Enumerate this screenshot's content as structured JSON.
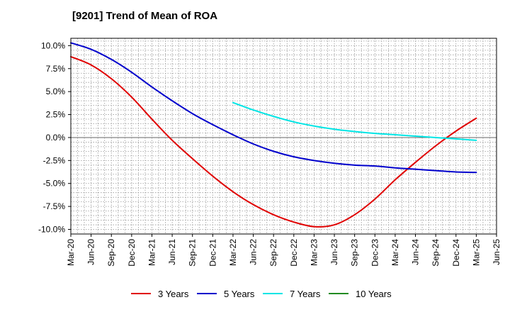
{
  "chart_data": {
    "type": "line",
    "title": "[9201]  Trend of Mean of ROA",
    "xlabel": "",
    "ylabel": "",
    "x_ticks": [
      "Mar-20",
      "Jun-20",
      "Sep-20",
      "Dec-20",
      "Mar-21",
      "Jun-21",
      "Sep-21",
      "Dec-21",
      "Mar-22",
      "Jun-22",
      "Sep-22",
      "Dec-22",
      "Mar-23",
      "Jun-23",
      "Sep-23",
      "Dec-23",
      "Mar-24",
      "Jun-24",
      "Sep-24",
      "Dec-24",
      "Mar-25",
      "Jun-25"
    ],
    "y_ticks": [
      10.0,
      7.5,
      5.0,
      2.5,
      0.0,
      -2.5,
      -5.0,
      -7.5,
      -10.0
    ],
    "y_tick_labels": [
      "10.0%",
      "7.5%",
      "5.0%",
      "2.5%",
      "0.0%",
      "-2.5%",
      "-5.0%",
      "-7.5%",
      "-10.0%"
    ],
    "ylim": [
      -10.5,
      10.8
    ],
    "grid": true,
    "legend_position": "bottom",
    "series": [
      {
        "name": "3 Years",
        "color": "#e00000",
        "values": [
          8.8,
          7.9,
          6.4,
          4.4,
          2.0,
          -0.3,
          -2.3,
          -4.2,
          -5.9,
          -7.3,
          -8.4,
          -9.2,
          -9.7,
          -9.5,
          -8.4,
          -6.7,
          -4.6,
          -2.7,
          -0.9,
          0.7,
          2.1,
          null
        ]
      },
      {
        "name": "5 Years",
        "color": "#0000cc",
        "values": [
          10.3,
          9.6,
          8.5,
          7.1,
          5.5,
          4.0,
          2.6,
          1.4,
          0.3,
          -0.7,
          -1.5,
          -2.1,
          -2.5,
          -2.8,
          -3.0,
          -3.1,
          -3.3,
          -3.45,
          -3.6,
          -3.75,
          -3.8,
          null
        ]
      },
      {
        "name": "7 Years",
        "color": "#00e5e5",
        "values": [
          null,
          null,
          null,
          null,
          null,
          null,
          null,
          null,
          3.8,
          3.0,
          2.3,
          1.7,
          1.25,
          0.9,
          0.65,
          0.45,
          0.3,
          0.15,
          0.0,
          -0.15,
          -0.3,
          null
        ]
      },
      {
        "name": "10 Years",
        "color": "#228b22",
        "values": [
          null,
          null,
          null,
          null,
          null,
          null,
          null,
          null,
          null,
          null,
          null,
          null,
          null,
          null,
          null,
          null,
          null,
          null,
          null,
          null,
          null,
          null
        ]
      }
    ]
  }
}
